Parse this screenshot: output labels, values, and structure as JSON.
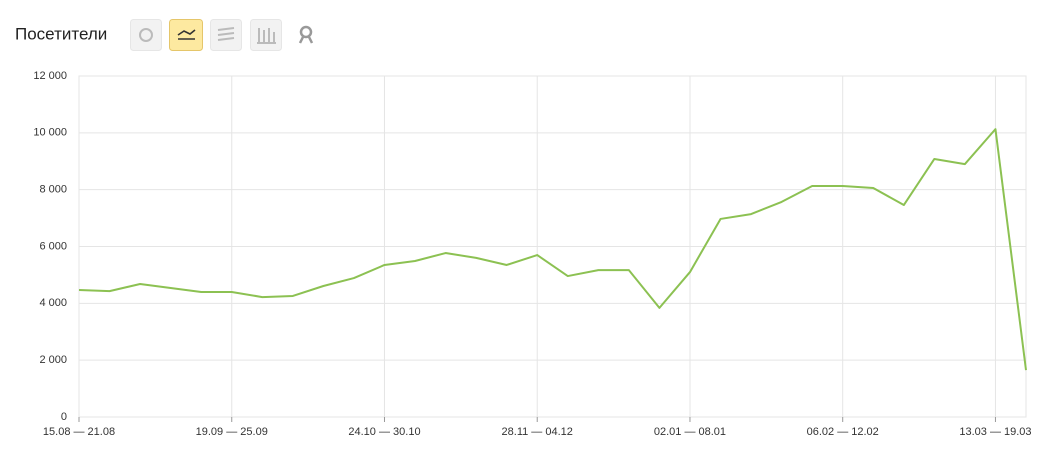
{
  "chart_data": {
    "type": "line",
    "title": "Посетители",
    "categories": [
      "15.08 — 21.08",
      null,
      null,
      null,
      null,
      "19.09 — 25.09",
      null,
      null,
      null,
      null,
      "24.10 — 30.10",
      null,
      null,
      null,
      null,
      "28.11 — 04.12",
      null,
      null,
      null,
      null,
      "02.01 — 08.01",
      null,
      null,
      null,
      null,
      "06.02 — 12.02",
      null,
      null,
      null,
      null,
      "13.03 — 19.03",
      null
    ],
    "values": [
      4470,
      4430,
      4680,
      4540,
      4400,
      4400,
      4220,
      4260,
      4610,
      4890,
      5350,
      5490,
      5770,
      5600,
      5350,
      5700,
      4960,
      5170,
      5170,
      3840,
      5100,
      6970,
      7140,
      7570,
      8130,
      8130,
      8060,
      7460,
      9080,
      8900,
      10130,
      1650
    ],
    "color": "#8cc152",
    "ylim": [
      0,
      12000
    ],
    "yticks": [
      0,
      {
        "value": 2000,
        "label": "2 000"
      },
      {
        "value": 4000,
        "label": "4 000"
      },
      {
        "value": 6000,
        "label": "6 000"
      },
      {
        "value": 8000,
        "label": "8 000"
      },
      {
        "value": 10000,
        "label": "10 000"
      },
      {
        "value": 12000,
        "label": "12 000"
      }
    ],
    "grid": true
  }
}
